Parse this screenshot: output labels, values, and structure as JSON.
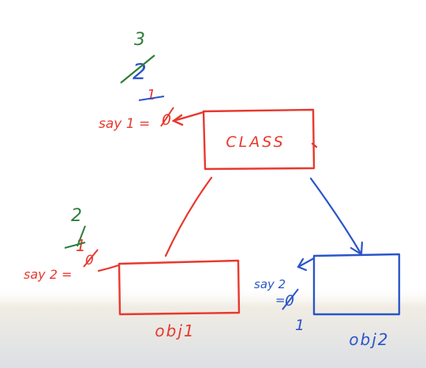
{
  "diagram": {
    "colors": {
      "red": "#e8382e",
      "blue": "#2a55c9",
      "green": "#2f7d3a"
    },
    "class_box": {
      "label": "CLASS"
    },
    "obj1_box": {
      "label": "obj1"
    },
    "obj2_box": {
      "label": "obj2"
    },
    "counter1": {
      "text": "say 1 =",
      "history": [
        {
          "value": "0",
          "struck": true
        },
        {
          "value": "1",
          "struck": true
        },
        {
          "value": "2",
          "struck": true
        },
        {
          "value": "3",
          "struck": false
        }
      ]
    },
    "counter2": {
      "text": "say 2 =",
      "history": [
        {
          "value": "0",
          "struck": true
        },
        {
          "value": "1",
          "struck": true
        },
        {
          "value": "2",
          "struck": false
        }
      ]
    },
    "counter3": {
      "text": "say 2",
      "history": [
        {
          "value": "0",
          "struck": true
        },
        {
          "value": "1",
          "struck": false
        }
      ]
    }
  }
}
